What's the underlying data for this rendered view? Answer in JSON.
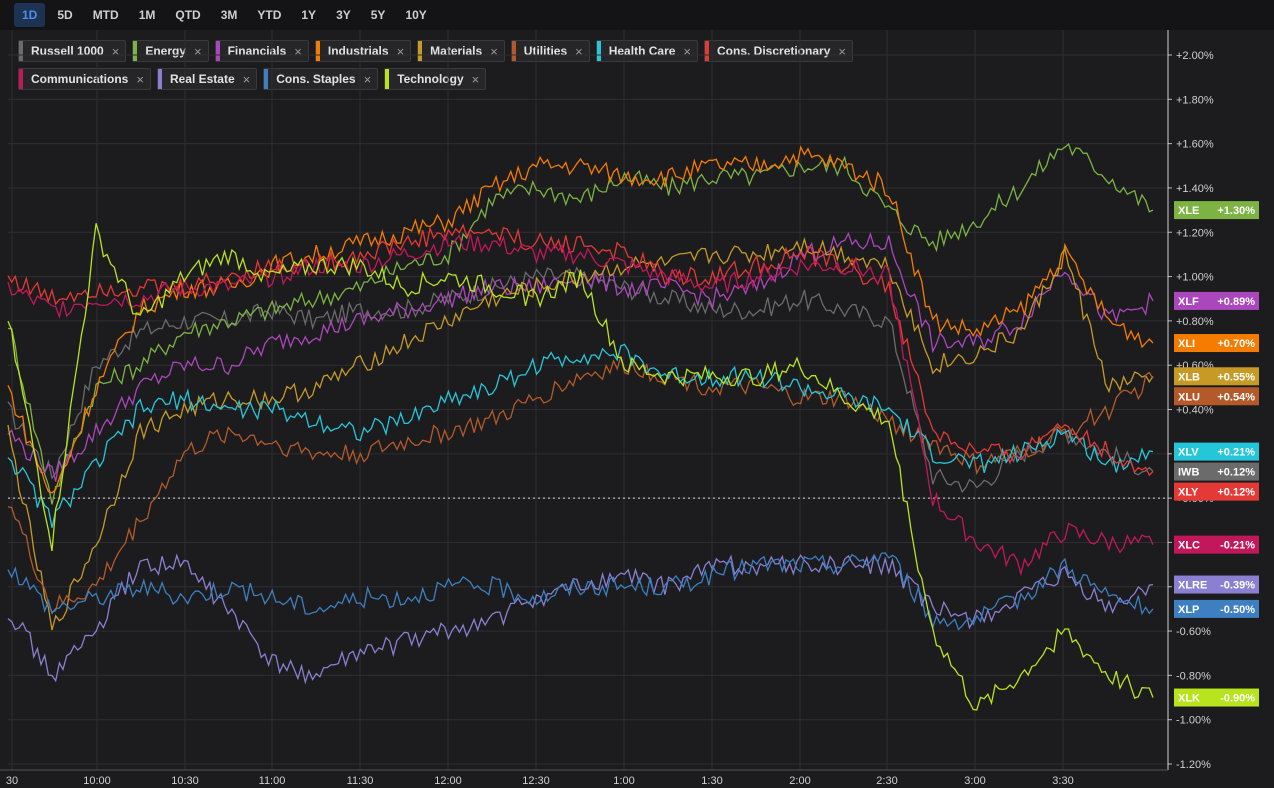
{
  "timeframes": [
    "1D",
    "5D",
    "MTD",
    "1M",
    "QTD",
    "3M",
    "YTD",
    "1Y",
    "3Y",
    "5Y",
    "10Y"
  ],
  "active_timeframe": "1D",
  "chart_data": {
    "type": "line",
    "x_ticks": [
      "30",
      "10:00",
      "10:30",
      "11:00",
      "11:30",
      "12:00",
      "12:30",
      "1:00",
      "1:30",
      "2:00",
      "2:30",
      "3:00",
      "3:30"
    ],
    "y_ticks": [
      "+2.00%",
      "+1.80%",
      "+1.60%",
      "+1.40%",
      "+1.20%",
      "+1.00%",
      "+0.80%",
      "+0.60%",
      "+0.40%",
      "+0.20%",
      "+0.00%",
      "-0.20%",
      "-0.40%",
      "-0.60%",
      "-0.80%",
      "-1.00%",
      "-1.20%"
    ],
    "ylim": [
      -1.2,
      2.0
    ],
    "x": [
      "9:30",
      "9:45",
      "10:00",
      "10:15",
      "10:30",
      "10:45",
      "11:00",
      "11:15",
      "11:30",
      "11:45",
      "12:00",
      "12:15",
      "12:30",
      "12:45",
      "1:00",
      "1:15",
      "1:30",
      "1:45",
      "2:00",
      "2:15",
      "2:30",
      "2:45",
      "3:00",
      "3:15",
      "3:30",
      "3:45",
      "3:55"
    ],
    "series": [
      {
        "name": "Russell 1000",
        "ticker": "IWB",
        "color": "#6b6b6b",
        "end_label": "+0.12%",
        "values": [
          0.4,
          0.1,
          0.6,
          0.75,
          0.8,
          0.8,
          0.85,
          0.8,
          0.85,
          0.85,
          0.9,
          0.95,
          1.0,
          1.0,
          0.95,
          0.9,
          0.85,
          0.85,
          0.9,
          0.85,
          0.8,
          0.1,
          0.05,
          0.2,
          0.3,
          0.2,
          0.12
        ]
      },
      {
        "name": "Energy",
        "ticker": "XLE",
        "color": "#7cb342",
        "end_label": "+1.30%",
        "values": [
          0.8,
          0.0,
          0.5,
          0.6,
          0.75,
          0.8,
          0.85,
          0.9,
          0.95,
          1.05,
          1.1,
          1.35,
          1.4,
          1.35,
          1.45,
          1.4,
          1.45,
          1.45,
          1.5,
          1.5,
          1.3,
          1.15,
          1.25,
          1.4,
          1.6,
          1.45,
          1.3
        ]
      },
      {
        "name": "Financials",
        "ticker": "XLF",
        "color": "#ab47bc",
        "end_label": "+0.89%",
        "values": [
          0.3,
          0.1,
          0.3,
          0.5,
          0.6,
          0.6,
          0.7,
          0.75,
          0.8,
          0.85,
          0.9,
          0.95,
          0.95,
          1.0,
          0.95,
          0.95,
          0.9,
          0.95,
          1.1,
          1.15,
          1.15,
          0.7,
          0.7,
          0.8,
          1.05,
          0.8,
          0.89
        ]
      },
      {
        "name": "Industrials",
        "ticker": "XLI",
        "color": "#f57c00",
        "end_label": "+0.70%",
        "values": [
          0.5,
          0.0,
          0.5,
          0.85,
          0.95,
          0.95,
          1.05,
          1.1,
          1.15,
          1.2,
          1.25,
          1.4,
          1.5,
          1.5,
          1.45,
          1.45,
          1.5,
          1.5,
          1.55,
          1.5,
          1.4,
          0.8,
          0.75,
          0.85,
          1.1,
          0.8,
          0.7
        ]
      },
      {
        "name": "Materials",
        "ticker": "XLB",
        "color": "#c69a24",
        "end_label": "+0.55%",
        "values": [
          0.3,
          -0.6,
          -0.2,
          0.3,
          0.4,
          0.45,
          0.45,
          0.5,
          0.6,
          0.7,
          0.8,
          0.9,
          0.95,
          1.0,
          1.05,
          1.05,
          1.1,
          1.1,
          1.15,
          1.1,
          1.05,
          0.6,
          0.65,
          0.75,
          1.1,
          0.5,
          0.55
        ]
      },
      {
        "name": "Utilities",
        "ticker": "XLU",
        "color": "#b45a2a",
        "end_label": "+0.54%",
        "values": [
          0.0,
          -0.5,
          -0.4,
          -0.1,
          0.2,
          0.3,
          0.25,
          0.2,
          0.2,
          0.25,
          0.3,
          0.35,
          0.45,
          0.55,
          0.6,
          0.55,
          0.5,
          0.5,
          0.45,
          0.45,
          0.35,
          0.25,
          0.15,
          0.2,
          0.3,
          0.4,
          0.54
        ]
      },
      {
        "name": "Health Care",
        "ticker": "XLV",
        "color": "#26c6da",
        "end_label": "+0.21%",
        "values": [
          0.2,
          -0.1,
          0.15,
          0.4,
          0.45,
          0.4,
          0.4,
          0.35,
          0.3,
          0.35,
          0.45,
          0.5,
          0.6,
          0.65,
          0.65,
          0.55,
          0.55,
          0.55,
          0.5,
          0.45,
          0.4,
          0.2,
          0.15,
          0.2,
          0.3,
          0.15,
          0.21
        ]
      },
      {
        "name": "Cons. Discretionary",
        "ticker": "XLY",
        "color": "#e53935",
        "end_label": "+0.12%",
        "values": [
          1.0,
          0.9,
          0.95,
          0.95,
          0.95,
          1.0,
          1.05,
          1.05,
          1.1,
          1.15,
          1.2,
          1.2,
          1.15,
          1.15,
          1.1,
          1.0,
          1.0,
          1.05,
          1.1,
          1.05,
          0.95,
          0.3,
          0.2,
          0.2,
          0.35,
          0.2,
          0.12
        ]
      },
      {
        "name": "Communications",
        "ticker": "XLC",
        "color": "#c2185b",
        "end_label": "-0.21%",
        "values": [
          0.95,
          0.85,
          0.9,
          0.9,
          0.95,
          0.95,
          1.0,
          1.05,
          1.05,
          1.1,
          1.15,
          1.15,
          1.1,
          1.1,
          1.05,
          1.0,
          0.95,
          1.0,
          1.05,
          1.05,
          1.0,
          0.0,
          -0.2,
          -0.3,
          -0.15,
          -0.2,
          -0.21
        ]
      },
      {
        "name": "Real Estate",
        "ticker": "XLRE",
        "color": "#8a7fd1",
        "end_label": "-0.39%",
        "values": [
          -0.5,
          -0.8,
          -0.6,
          -0.3,
          -0.3,
          -0.5,
          -0.75,
          -0.8,
          -0.7,
          -0.65,
          -0.6,
          -0.55,
          -0.45,
          -0.4,
          -0.35,
          -0.4,
          -0.3,
          -0.3,
          -0.3,
          -0.3,
          -0.3,
          -0.5,
          -0.55,
          -0.45,
          -0.35,
          -0.5,
          -0.39
        ]
      },
      {
        "name": "Cons. Staples",
        "ticker": "XLP",
        "color": "#3d7fc1",
        "end_label": "-0.50%",
        "values": [
          -0.3,
          -0.5,
          -0.45,
          -0.4,
          -0.45,
          -0.4,
          -0.45,
          -0.5,
          -0.45,
          -0.45,
          -0.4,
          -0.4,
          -0.45,
          -0.4,
          -0.4,
          -0.4,
          -0.35,
          -0.3,
          -0.3,
          -0.3,
          -0.25,
          -0.55,
          -0.55,
          -0.45,
          -0.3,
          -0.45,
          -0.5
        ]
      },
      {
        "name": "Technology",
        "ticker": "XLK",
        "color": "#b7e41d",
        "end_label": "-0.90%",
        "values": [
          0.8,
          -0.2,
          1.2,
          0.8,
          1.0,
          1.1,
          1.0,
          1.05,
          1.05,
          0.95,
          1.0,
          0.95,
          0.9,
          1.0,
          0.6,
          0.55,
          0.55,
          0.55,
          0.6,
          0.45,
          0.35,
          -0.6,
          -0.95,
          -0.8,
          -0.6,
          -0.8,
          -0.9
        ]
      }
    ]
  }
}
